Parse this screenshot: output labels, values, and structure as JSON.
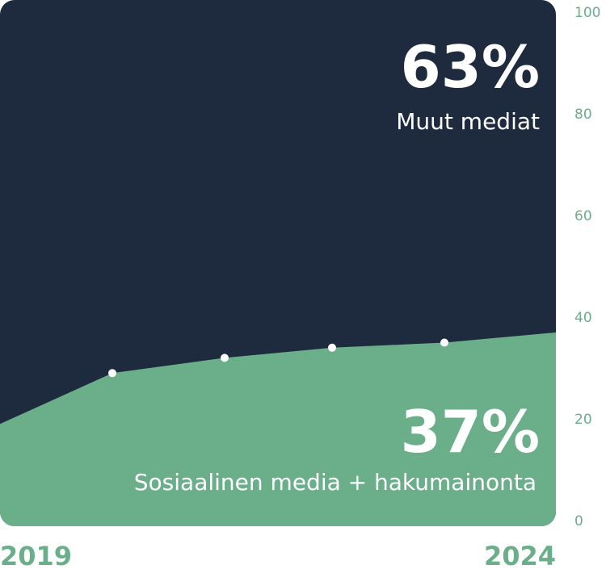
{
  "chart_data": {
    "type": "area",
    "x": [
      "2019",
      "",
      "",
      "",
      "",
      "2024"
    ],
    "series": [
      {
        "name": "Sosiaalinen media + hakumainonta",
        "values": [
          19,
          29,
          32,
          34,
          35,
          37
        ],
        "color": "#6aae8a"
      },
      {
        "name": "Muut mediat",
        "values": [
          81,
          71,
          68,
          66,
          65,
          63
        ],
        "color": "#1e2a3d"
      }
    ],
    "stacked": true,
    "ylim": [
      0,
      100
    ],
    "yticks": [
      "0",
      "20",
      "40",
      "60",
      "80",
      "100"
    ],
    "xlabels": {
      "start": "2019",
      "end": "2024"
    },
    "markers": "white dots on the green/dark boundary (inner points)",
    "annotations": {
      "top_value": "63%",
      "top_label": "Muut mediat",
      "bottom_value": "37%",
      "bottom_label": "Sosiaalinen media + hakumainonta"
    }
  }
}
